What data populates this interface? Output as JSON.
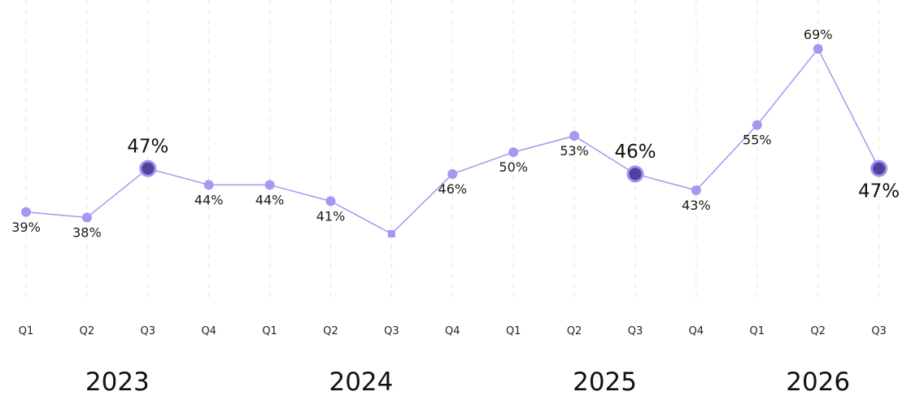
{
  "chart_data": {
    "type": "line",
    "x": [
      "Q1",
      "Q2",
      "Q3",
      "Q4",
      "Q1",
      "Q2",
      "Q3",
      "Q4",
      "Q1",
      "Q2",
      "Q3",
      "Q4",
      "Q1",
      "Q2",
      "Q3"
    ],
    "years": [
      {
        "label": "2023",
        "start": 0,
        "end": 3
      },
      {
        "label": "2024",
        "start": 4,
        "end": 7
      },
      {
        "label": "2025",
        "start": 8,
        "end": 11
      },
      {
        "label": "2026",
        "start": 12,
        "end": 14
      }
    ],
    "series": [
      {
        "values": [
          39,
          38,
          47,
          44,
          44,
          41,
          35,
          46,
          50,
          53,
          46,
          43,
          55,
          69,
          47
        ],
        "labels": [
          "39%",
          "38%",
          "47%",
          "44%",
          "44%",
          "41%",
          "",
          "46%",
          "50%",
          "53%",
          "46%",
          "43%",
          "55%",
          "69%",
          "47%"
        ],
        "highlighted": [
          2,
          10,
          14
        ],
        "marker_square": [
          6
        ],
        "label_position": [
          "below",
          "below",
          "above",
          "below",
          "below",
          "below",
          "none",
          "below",
          "below",
          "below",
          "above",
          "below",
          "below",
          "above",
          "below"
        ],
        "color": "#a398ee",
        "highlight_color": "#4f429f"
      }
    ],
    "title": "",
    "xlabel": "",
    "ylabel": "",
    "ylim": [
      30,
      72
    ],
    "grid": "vertical dashed",
    "legend": "none"
  }
}
